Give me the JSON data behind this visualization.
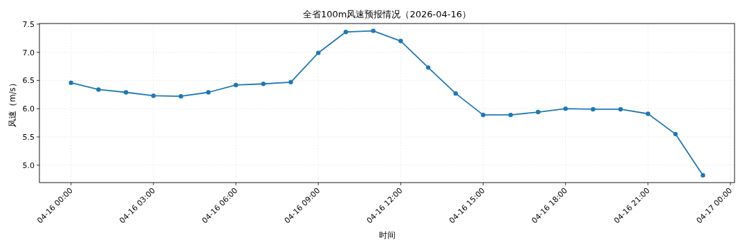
{
  "chart_data": {
    "type": "line",
    "title": "全省100m风速预报情况（2026-04-16）",
    "xlabel": "时间",
    "ylabel": "风速（m/s）",
    "x": [
      "2026-04-16T00:00",
      "2026-04-16T01:00",
      "2026-04-16T02:00",
      "2026-04-16T03:00",
      "2026-04-16T04:00",
      "2026-04-16T05:00",
      "2026-04-16T06:00",
      "2026-04-16T07:00",
      "2026-04-16T08:00",
      "2026-04-16T09:00",
      "2026-04-16T10:00",
      "2026-04-16T11:00",
      "2026-04-16T12:00",
      "2026-04-16T13:00",
      "2026-04-16T14:00",
      "2026-04-16T15:00",
      "2026-04-16T16:00",
      "2026-04-16T17:00",
      "2026-04-16T18:00",
      "2026-04-16T19:00",
      "2026-04-16T20:00",
      "2026-04-16T21:00",
      "2026-04-16T22:00",
      "2026-04-16T23:00"
    ],
    "series": [
      {
        "color": "#1f77b4",
        "values": [
          6.46,
          6.34,
          6.29,
          6.23,
          6.22,
          6.29,
          6.42,
          6.44,
          6.47,
          6.99,
          7.36,
          7.38,
          7.2,
          6.73,
          6.27,
          5.89,
          5.89,
          5.94,
          6.0,
          5.99,
          5.99,
          5.91,
          5.55,
          4.82
        ]
      }
    ],
    "xlim": [
      "2026-04-15T22:51",
      "2026-04-17T00:09"
    ],
    "ylim": [
      4.69,
      7.51
    ],
    "xticks": [
      {
        "value": "2026-04-16T00:00",
        "label": "04-16 00:00"
      },
      {
        "value": "2026-04-16T03:00",
        "label": "04-16 03:00"
      },
      {
        "value": "2026-04-16T06:00",
        "label": "04-16 06:00"
      },
      {
        "value": "2026-04-16T09:00",
        "label": "04-16 09:00"
      },
      {
        "value": "2026-04-16T12:00",
        "label": "04-16 12:00"
      },
      {
        "value": "2026-04-16T15:00",
        "label": "04-16 15:00"
      },
      {
        "value": "2026-04-16T18:00",
        "label": "04-16 18:00"
      },
      {
        "value": "2026-04-16T21:00",
        "label": "04-16 21:00"
      },
      {
        "value": "2026-04-17T00:00",
        "label": "04-17 00:00"
      }
    ],
    "yticks": [
      {
        "value": 5.0,
        "label": "5.0"
      },
      {
        "value": 5.5,
        "label": "5.5"
      },
      {
        "value": 6.0,
        "label": "6.0"
      },
      {
        "value": 6.5,
        "label": "6.5"
      },
      {
        "value": 7.0,
        "label": "7.0"
      },
      {
        "value": 7.5,
        "label": "7.5"
      }
    ],
    "grid": true,
    "marker": "circle",
    "line_style": "solid"
  }
}
